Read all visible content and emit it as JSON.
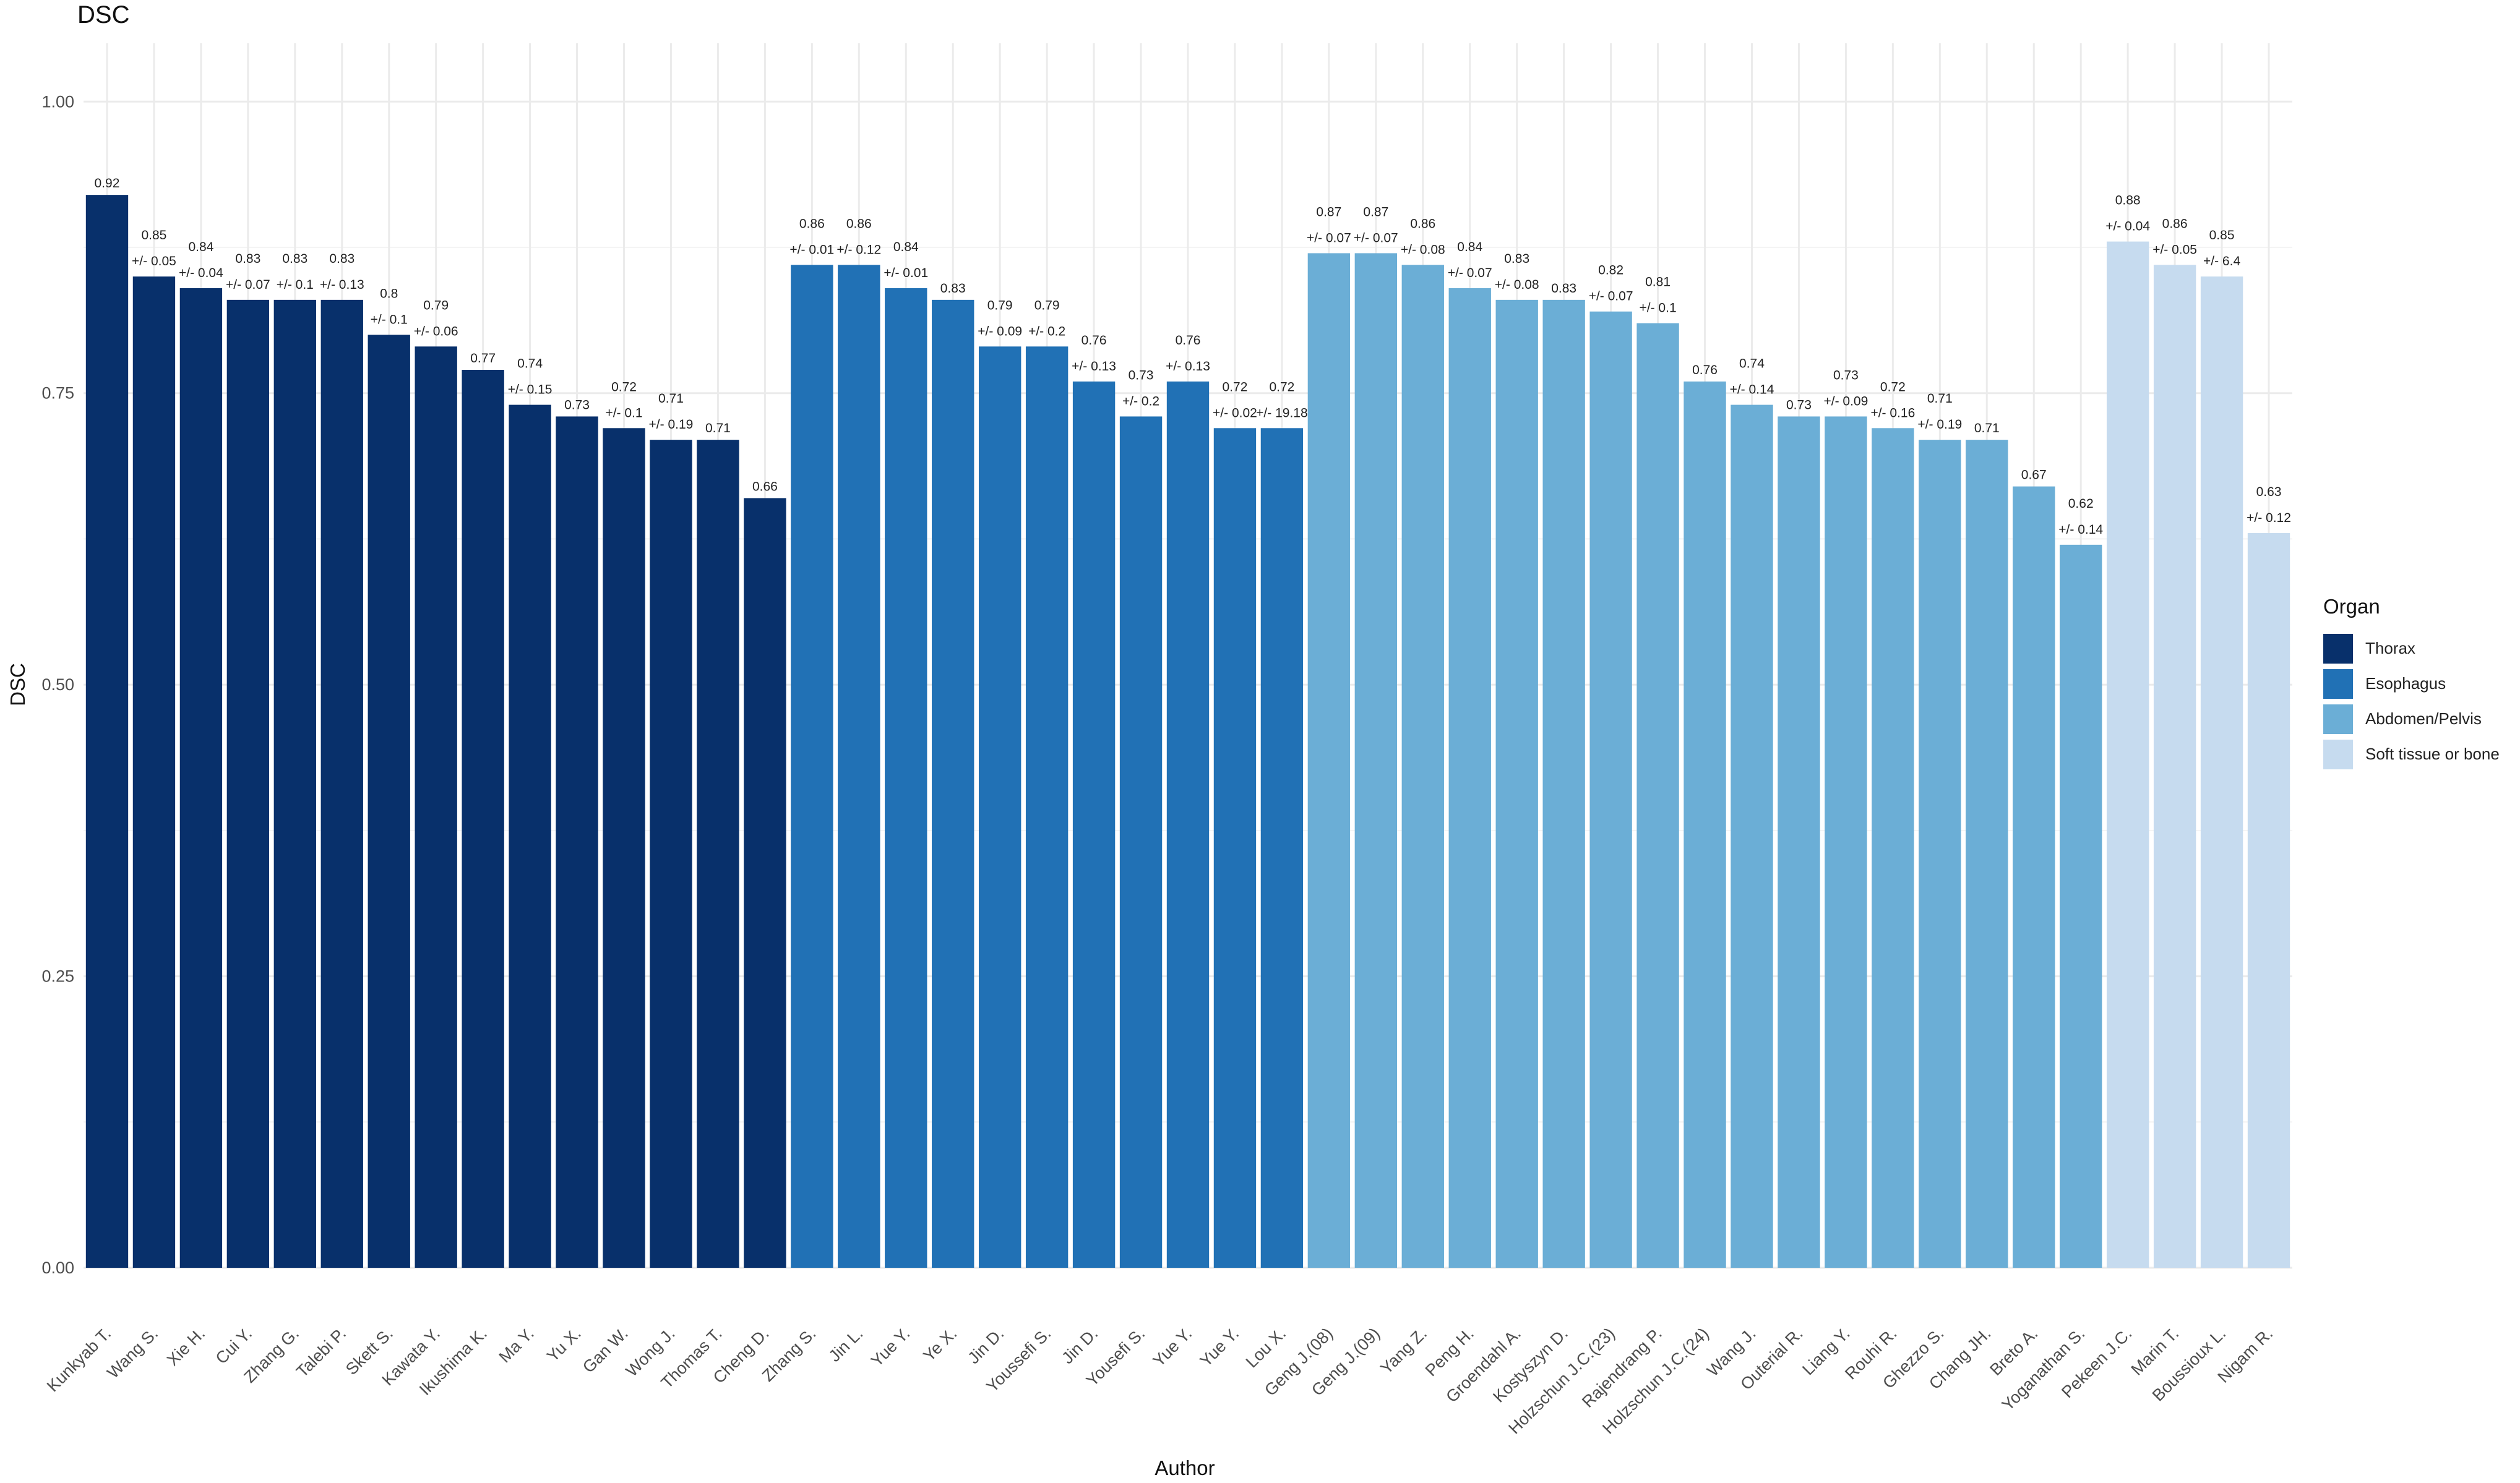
{
  "chart_data": {
    "type": "bar",
    "title": "DSC",
    "xlabel": "Author",
    "ylabel": "DSC",
    "ylim": [
      0,
      1.05
    ],
    "yticks": [
      0.0,
      0.25,
      0.5,
      0.75,
      1.0
    ],
    "ytick_labels": [
      "0.00",
      "0.25",
      "0.50",
      "0.75",
      "1.00"
    ],
    "legend": {
      "title": "Organ",
      "position": "right",
      "entries": [
        {
          "label": "Thorax",
          "color": "#08306b"
        },
        {
          "label": "Esophagus",
          "color": "#2171b5"
        },
        {
          "label": "Abdomen/Pelvis",
          "color": "#6baed6"
        },
        {
          "label": "Soft tissue or bone",
          "color": "#c6dbef"
        }
      ]
    },
    "bars": [
      {
        "author": "Kunkyab T.",
        "value": 0.92,
        "label": "0.92",
        "sd": "",
        "group": "Thorax"
      },
      {
        "author": "Wang S.",
        "value": 0.85,
        "label": "0.85",
        "sd": "+/-  0.05",
        "group": "Thorax"
      },
      {
        "author": "Xie H.",
        "value": 0.84,
        "label": "0.84",
        "sd": "+/-  0.04",
        "group": "Thorax"
      },
      {
        "author": "Cui Y.",
        "value": 0.83,
        "label": "0.83",
        "sd": "+/-  0.07",
        "group": "Thorax"
      },
      {
        "author": "Zhang G.",
        "value": 0.83,
        "label": "0.83",
        "sd": "+/-  0.1",
        "group": "Thorax"
      },
      {
        "author": "Talebi P.",
        "value": 0.83,
        "label": "0.83",
        "sd": "+/-  0.13",
        "group": "Thorax"
      },
      {
        "author": "Skett S.",
        "value": 0.8,
        "label": "0.8",
        "sd": "+/-  0.1",
        "group": "Thorax"
      },
      {
        "author": "Kawata Y.",
        "value": 0.79,
        "label": "0.79",
        "sd": "+/-  0.06",
        "group": "Thorax"
      },
      {
        "author": "Ikushima K.",
        "value": 0.77,
        "label": "0.77",
        "sd": "",
        "group": "Thorax"
      },
      {
        "author": "Ma Y.",
        "value": 0.74,
        "label": "0.74",
        "sd": "+/-  0.15",
        "group": "Thorax"
      },
      {
        "author": "Yu X.",
        "value": 0.73,
        "label": "0.73",
        "sd": "",
        "group": "Thorax"
      },
      {
        "author": "Gan W.",
        "value": 0.72,
        "label": "0.72",
        "sd": "+/-  0.1",
        "group": "Thorax"
      },
      {
        "author": "Wong J.",
        "value": 0.71,
        "label": "0.71",
        "sd": "+/-  0.19",
        "group": "Thorax"
      },
      {
        "author": "Thomas T.",
        "value": 0.71,
        "label": "0.71",
        "sd": "",
        "group": "Thorax"
      },
      {
        "author": "Cheng D.",
        "value": 0.66,
        "label": "0.66",
        "sd": "",
        "group": "Thorax"
      },
      {
        "author": "Zhang S.",
        "value": 0.86,
        "label": "0.86",
        "sd": "+/-  0.01",
        "group": "Esophagus"
      },
      {
        "author": "Jin L.",
        "value": 0.86,
        "label": "0.86",
        "sd": "+/-  0.12",
        "group": "Esophagus"
      },
      {
        "author": "Yue Y.",
        "value": 0.84,
        "label": "0.84",
        "sd": "+/-  0.01",
        "group": "Esophagus"
      },
      {
        "author": "Ye X.",
        "value": 0.83,
        "label": "0.83",
        "sd": "",
        "group": "Esophagus"
      },
      {
        "author": "Jin D.",
        "value": 0.79,
        "label": "0.79",
        "sd": "+/-  0.09",
        "group": "Esophagus"
      },
      {
        "author": "Youssefi S.",
        "value": 0.79,
        "label": "0.79",
        "sd": "+/-  0.2",
        "group": "Esophagus"
      },
      {
        "author": "Jin D.",
        "value": 0.76,
        "label": "0.76",
        "sd": "+/-  0.13",
        "group": "Esophagus"
      },
      {
        "author": "Yousefi S.",
        "value": 0.73,
        "label": "0.73",
        "sd": "+/-  0.2",
        "group": "Esophagus"
      },
      {
        "author": "Yue Y.",
        "value": 0.76,
        "label": "0.76",
        "sd": "+/-  0.13",
        "group": "Esophagus"
      },
      {
        "author": "Yue Y.",
        "value": 0.72,
        "label": "0.72",
        "sd": "+/-  0.02",
        "group": "Esophagus"
      },
      {
        "author": "Lou X.",
        "value": 0.72,
        "label": "0.72",
        "sd": "+/-  19.18",
        "group": "Esophagus"
      },
      {
        "author": "Geng J.(08)",
        "value": 0.87,
        "label": "0.87",
        "sd": "+/-  0.07",
        "group": "Abdomen/Pelvis"
      },
      {
        "author": "Geng J.(09)",
        "value": 0.87,
        "label": "0.87",
        "sd": "+/-  0.07",
        "group": "Abdomen/Pelvis"
      },
      {
        "author": "Yang Z.",
        "value": 0.86,
        "label": "0.86",
        "sd": "+/-  0.08",
        "group": "Abdomen/Pelvis"
      },
      {
        "author": "Peng H.",
        "value": 0.84,
        "label": "0.84",
        "sd": "+/-  0.07",
        "group": "Abdomen/Pelvis"
      },
      {
        "author": "Groendahl A.",
        "value": 0.83,
        "label": "0.83",
        "sd": "+/-  0.08",
        "group": "Abdomen/Pelvis"
      },
      {
        "author": "Kostyszyn D.",
        "value": 0.83,
        "label": "0.83",
        "sd": "",
        "group": "Abdomen/Pelvis"
      },
      {
        "author": "Holzschun J.C.(23)",
        "value": 0.82,
        "label": "0.82",
        "sd": "+/-  0.07",
        "group": "Abdomen/Pelvis"
      },
      {
        "author": "Rajendrang P.",
        "value": 0.81,
        "label": "0.81",
        "sd": "+/-  0.1",
        "group": "Abdomen/Pelvis"
      },
      {
        "author": "Holzschun J.C.(24)",
        "value": 0.76,
        "label": "0.76",
        "sd": "",
        "group": "Abdomen/Pelvis"
      },
      {
        "author": "Wang J.",
        "value": 0.74,
        "label": "0.74",
        "sd": "+/-  0.14",
        "group": "Abdomen/Pelvis"
      },
      {
        "author": "Outerial R.",
        "value": 0.73,
        "label": "0.73",
        "sd": "",
        "group": "Abdomen/Pelvis"
      },
      {
        "author": "Liang Y.",
        "value": 0.73,
        "label": "0.73",
        "sd": "+/-  0.09",
        "group": "Abdomen/Pelvis"
      },
      {
        "author": "Rouhi R.",
        "value": 0.72,
        "label": "0.72",
        "sd": "+/-  0.16",
        "group": "Abdomen/Pelvis"
      },
      {
        "author": "Ghezzo S.",
        "value": 0.71,
        "label": "0.71",
        "sd": "+/-  0.19",
        "group": "Abdomen/Pelvis"
      },
      {
        "author": "Chang JH.",
        "value": 0.71,
        "label": "0.71",
        "sd": "",
        "group": "Abdomen/Pelvis"
      },
      {
        "author": "Breto A.",
        "value": 0.67,
        "label": "0.67",
        "sd": "",
        "group": "Abdomen/Pelvis"
      },
      {
        "author": "Yoganathan S.",
        "value": 0.62,
        "label": "0.62",
        "sd": "+/-  0.14",
        "group": "Abdomen/Pelvis"
      },
      {
        "author": "Pekeen J.C.",
        "value": 0.88,
        "label": "0.88",
        "sd": "+/-  0.04",
        "group": "Soft tissue or bone"
      },
      {
        "author": "Marin T.",
        "value": 0.86,
        "label": "0.86",
        "sd": "+/-  0.05",
        "group": "Soft tissue or bone"
      },
      {
        "author": "Boussioux L.",
        "value": 0.85,
        "label": "0.85",
        "sd": "+/-  6.4",
        "group": "Soft tissue or bone"
      },
      {
        "author": "Nigam R.",
        "value": 0.63,
        "label": "0.63",
        "sd": "+/-  0.12",
        "group": "Soft tissue or bone"
      }
    ]
  }
}
